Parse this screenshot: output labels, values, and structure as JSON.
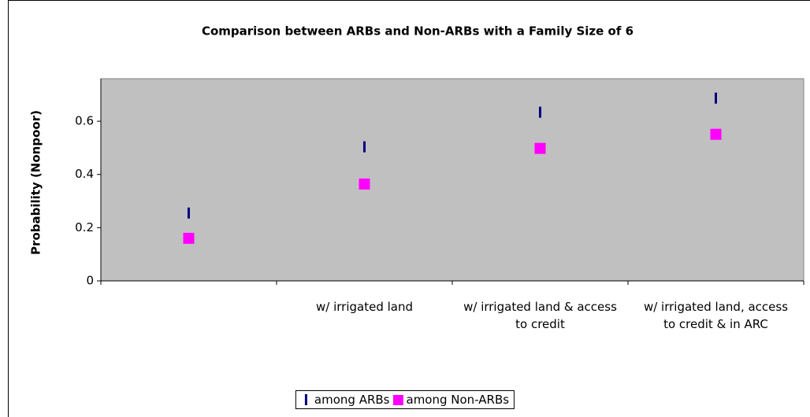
{
  "chart_data": {
    "type": "dot",
    "title": "Comparison between ARBs and Non-ARBs with a Family Size of 6",
    "y_label": "Probability (Nonpoor)",
    "categories": [
      null,
      "w/ irrigated land",
      "w/ irrigated land & access to credit",
      "w/ irrigated land, access to credit & in ARC"
    ],
    "series": [
      {
        "name": "among ARBs",
        "color": "#000080",
        "marker": "dash",
        "values": [
          0.255,
          0.504,
          0.634,
          0.687
        ]
      },
      {
        "name": "among Non-ARBs",
        "color": "#ff00ff",
        "marker": "square",
        "values": [
          0.16,
          0.364,
          0.498,
          0.551
        ]
      }
    ],
    "ylim": [
      0,
      0.76
    ],
    "yticks": [
      0,
      0.2,
      0.4,
      0.6
    ],
    "plot_background": "#c0c0c0",
    "legend": "bottom"
  }
}
